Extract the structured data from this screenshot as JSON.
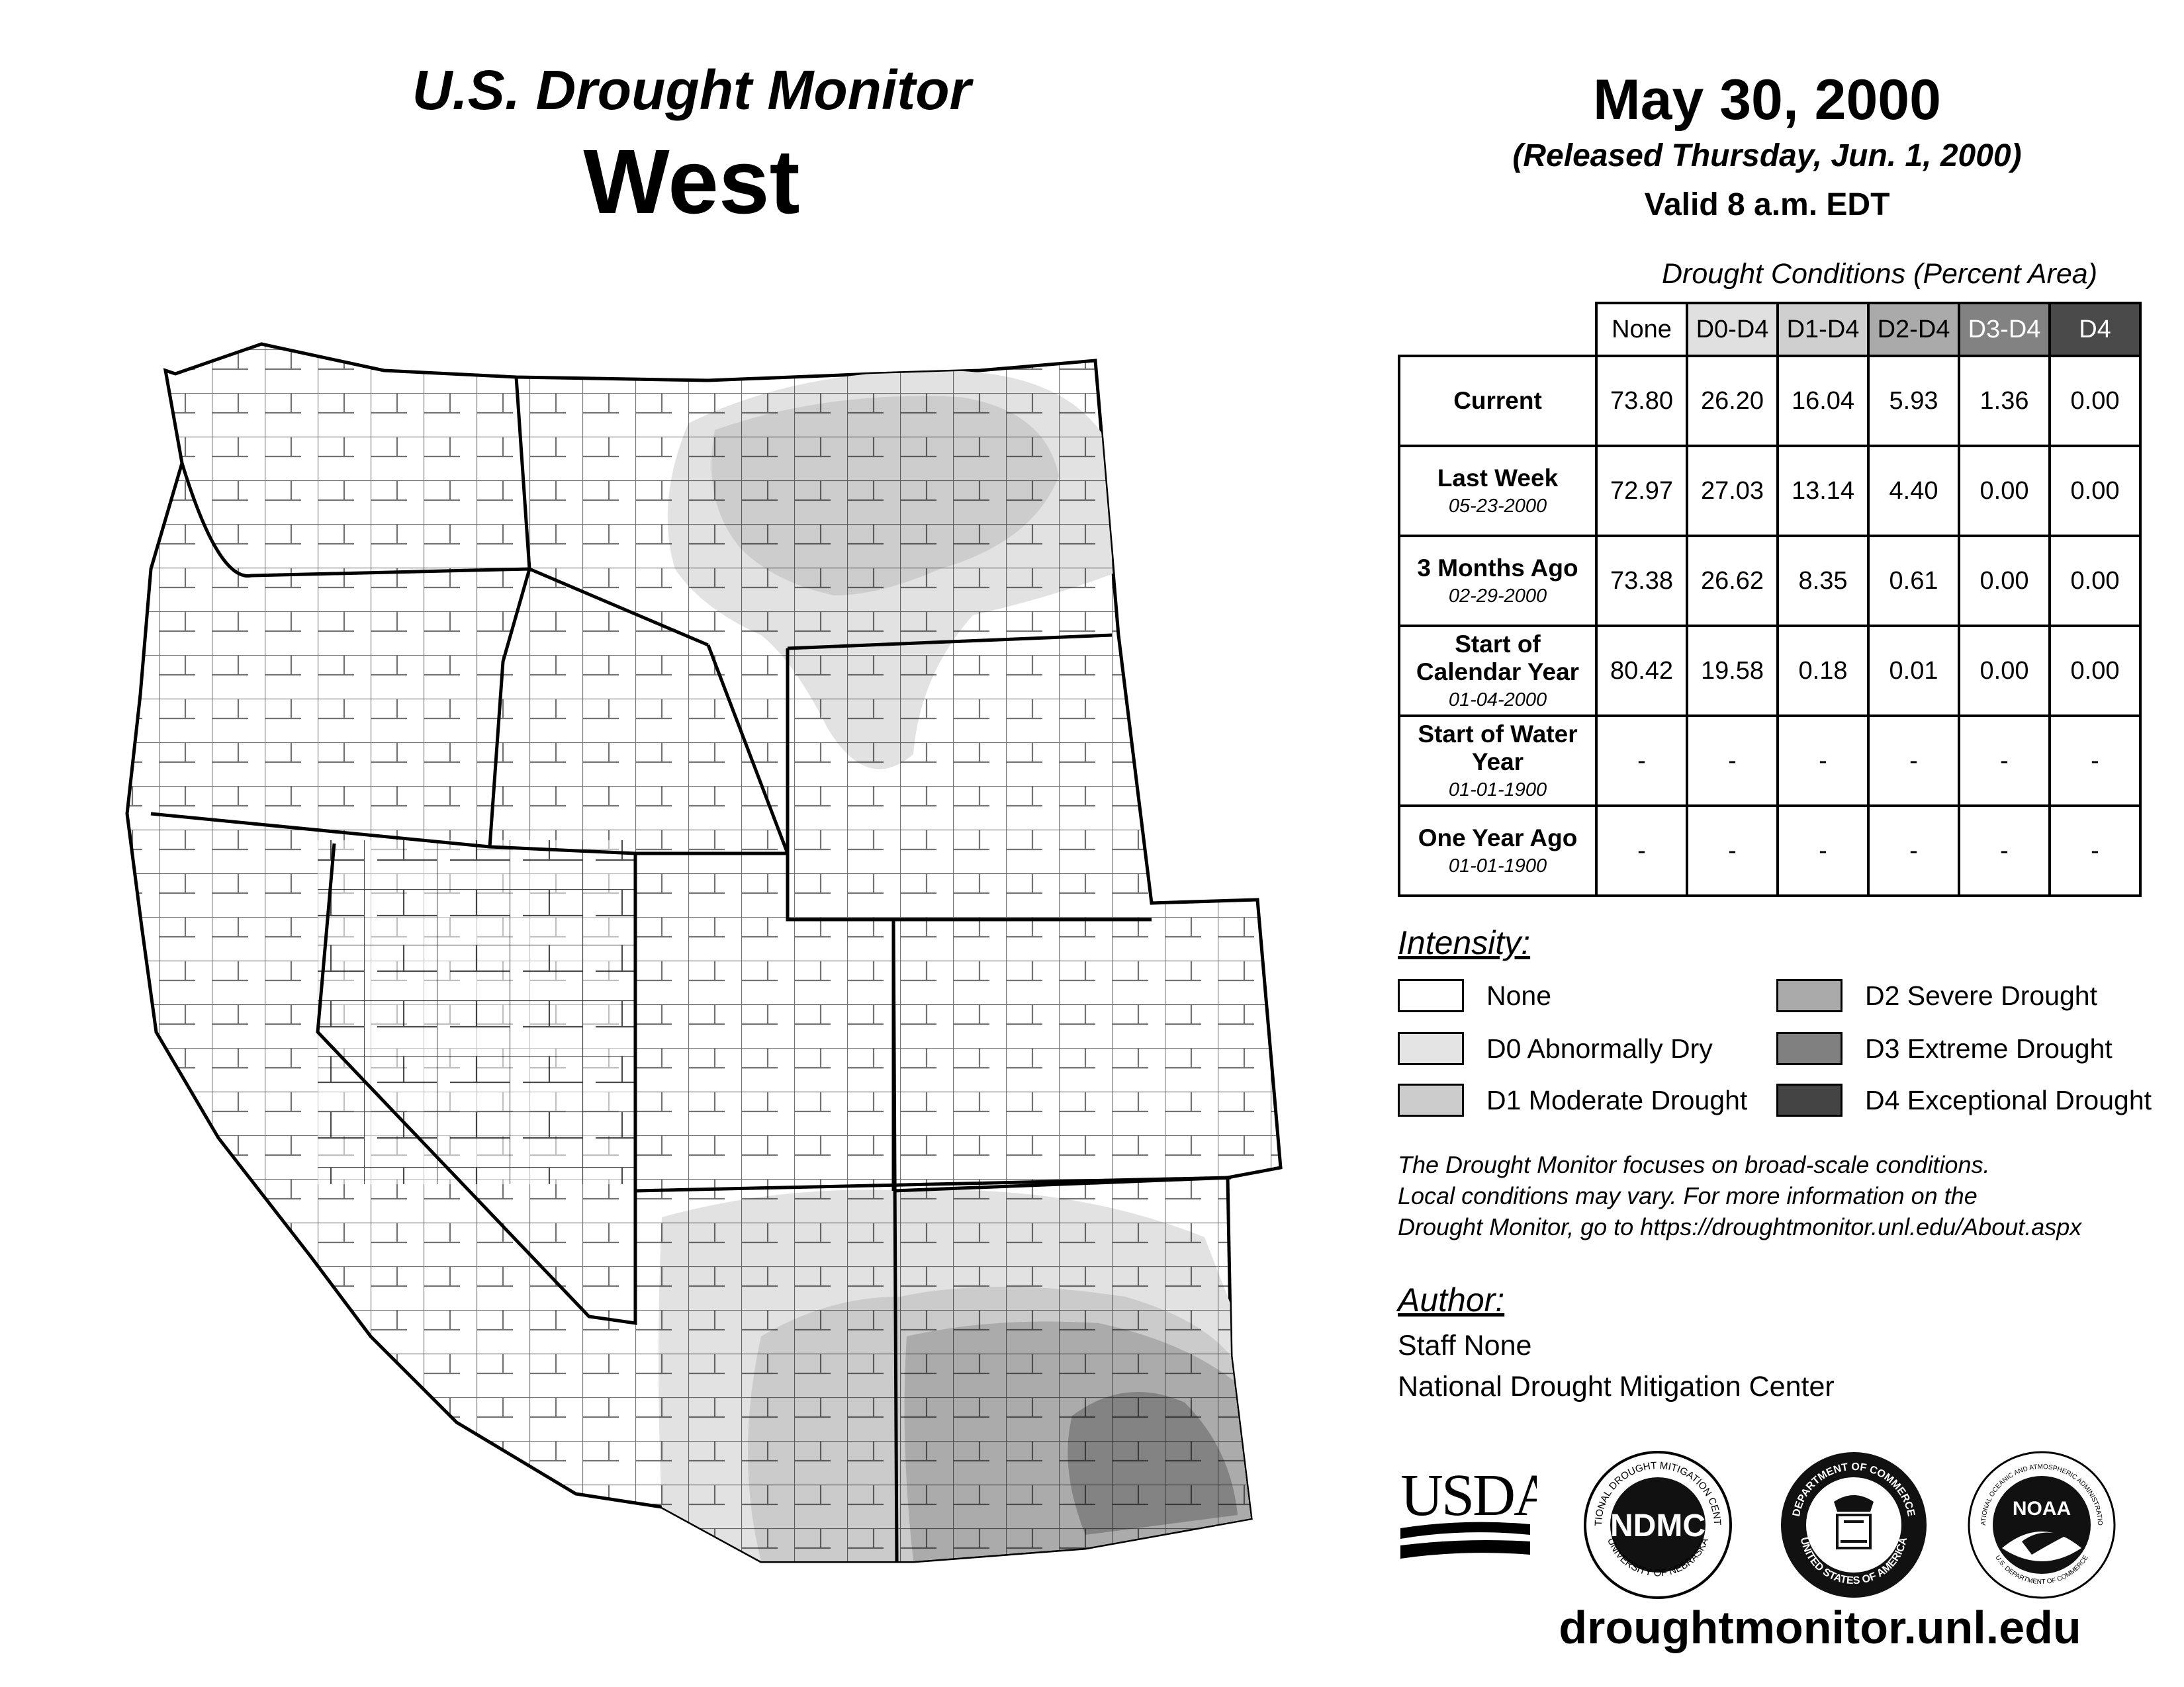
{
  "header": {
    "title": "U.S. Drought Monitor",
    "region": "West",
    "date": "May 30, 2000",
    "released": "(Released Thursday, Jun. 1, 2000)",
    "valid": "Valid 8 a.m. EDT"
  },
  "table": {
    "caption": "Drought Conditions (Percent Area)",
    "columns": [
      "None",
      "D0-D4",
      "D1-D4",
      "D2-D4",
      "D3-D4",
      "D4"
    ],
    "column_colors": [
      "#ffffff",
      "#e0e0e0",
      "#cfcfcf",
      "#aaaaaa",
      "#828282",
      "#4a4a4a"
    ],
    "rows": [
      {
        "label": "Current",
        "sub": "",
        "values": [
          "73.80",
          "26.20",
          "16.04",
          "5.93",
          "1.36",
          "0.00"
        ]
      },
      {
        "label": "Last Week",
        "sub": "05-23-2000",
        "values": [
          "72.97",
          "27.03",
          "13.14",
          "4.40",
          "0.00",
          "0.00"
        ]
      },
      {
        "label": "3 Months Ago",
        "sub": "02-29-2000",
        "values": [
          "73.38",
          "26.62",
          "8.35",
          "0.61",
          "0.00",
          "0.00"
        ]
      },
      {
        "label": "Start of Calendar Year",
        "sub": "01-04-2000",
        "values": [
          "80.42",
          "19.58",
          "0.18",
          "0.01",
          "0.00",
          "0.00"
        ]
      },
      {
        "label": "Start of Water Year",
        "sub": "01-01-1900",
        "values": [
          "-",
          "-",
          "-",
          "-",
          "-",
          "-"
        ]
      },
      {
        "label": "One Year Ago",
        "sub": "01-01-1900",
        "values": [
          "-",
          "-",
          "-",
          "-",
          "-",
          "-"
        ]
      }
    ]
  },
  "legend": {
    "title": "Intensity:",
    "items": [
      {
        "label": "None",
        "color": "#ffffff"
      },
      {
        "label": "D0 Abnormally Dry",
        "color": "#e4e4e4"
      },
      {
        "label": "D1 Moderate Drought",
        "color": "#cccccc"
      },
      {
        "label": "D2 Severe Drought",
        "color": "#aaaaaa"
      },
      {
        "label": "D3 Extreme Drought",
        "color": "#808080"
      },
      {
        "label": "D4 Exceptional Drought",
        "color": "#444444"
      }
    ]
  },
  "note": [
    "The Drought Monitor focuses on broad-scale conditions.",
    "Local conditions may vary. For more information on the",
    "Drought Monitor, go to https://droughtmonitor.unl.edu/About.aspx"
  ],
  "author": {
    "title": "Author:",
    "name": "Staff None",
    "org": "National Drought Mitigation Center"
  },
  "logos": {
    "usda": "USDA",
    "ndmc": "NDMC",
    "ndmc_ring_top": "NATIONAL DROUGHT MITIGATION CENTER",
    "ndmc_ring_bottom": "UNIVERSITY OF NEBRASKA",
    "doc_ring_top": "DEPARTMENT OF COMMERCE",
    "doc_ring_bottom": "UNITED STATES OF AMERICA",
    "noaa": "NOAA",
    "noaa_ring_top": "NATIONAL OCEANIC AND ATMOSPHERIC ADMINISTRATION",
    "noaa_ring_bottom": "U.S. DEPARTMENT OF COMMERCE"
  },
  "url": "droughtmonitor.unl.edu"
}
